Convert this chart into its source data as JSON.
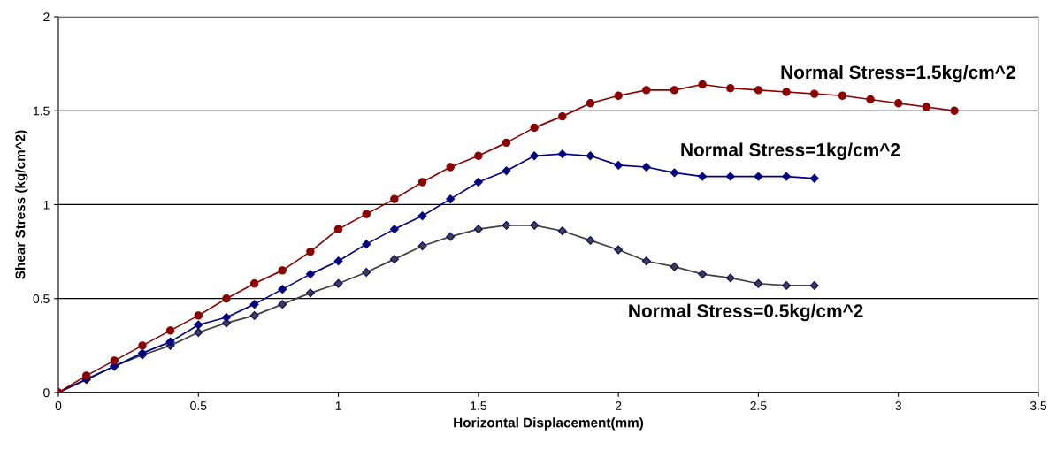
{
  "chart_data": {
    "type": "line",
    "xlabel": "Horizontal Displacement(mm)",
    "ylabel": "Shear Stress (kg/cm^2)",
    "xlim": [
      0,
      3.5
    ],
    "xticks": [
      0,
      0.5,
      1,
      1.5,
      2,
      2.5,
      3,
      3.5
    ],
    "ylim": [
      0,
      2
    ],
    "yticks": [
      0,
      0.5,
      1,
      1.5,
      2
    ],
    "grid": "y",
    "legend": false,
    "x": [
      0,
      0.1,
      0.2,
      0.3,
      0.4,
      0.5,
      0.6,
      0.7,
      0.8,
      0.9,
      1.0,
      1.1,
      1.2,
      1.3,
      1.4,
      1.5,
      1.6,
      1.7,
      1.8,
      1.9,
      2.0,
      2.1,
      2.2,
      2.3,
      2.4,
      2.5,
      2.6,
      2.7,
      2.8,
      2.9,
      3.0,
      3.1,
      3.2
    ],
    "series": [
      {
        "name": "Normal Stress=1.5kg/cm^2",
        "color": "#8b0000",
        "marker": "circle",
        "values": [
          0,
          0.09,
          0.17,
          0.25,
          0.33,
          0.41,
          0.5,
          0.58,
          0.65,
          0.75,
          0.87,
          0.95,
          1.03,
          1.12,
          1.2,
          1.26,
          1.33,
          1.41,
          1.47,
          1.54,
          1.58,
          1.61,
          1.61,
          1.64,
          1.62,
          1.61,
          1.6,
          1.59,
          1.58,
          1.56,
          1.54,
          1.52,
          1.5
        ]
      },
      {
        "name": "Normal Stress=1kg/cm^2",
        "color": "#000080",
        "marker": "diamond",
        "x": [
          0,
          0.1,
          0.2,
          0.3,
          0.4,
          0.5,
          0.6,
          0.7,
          0.8,
          0.9,
          1.0,
          1.1,
          1.2,
          1.3,
          1.4,
          1.5,
          1.6,
          1.7,
          1.8,
          1.9,
          2.0,
          2.1,
          2.2,
          2.3,
          2.4,
          2.5,
          2.6,
          2.7
        ],
        "values": [
          0,
          0.07,
          0.14,
          0.21,
          0.27,
          0.36,
          0.4,
          0.47,
          0.55,
          0.63,
          0.7,
          0.79,
          0.87,
          0.94,
          1.03,
          1.12,
          1.18,
          1.26,
          1.27,
          1.26,
          1.21,
          1.2,
          1.17,
          1.15,
          1.15,
          1.15,
          1.15,
          1.14
        ]
      },
      {
        "name": "Normal Stress=0.5kg/cm^2",
        "color": "#404040",
        "marker": "diamond",
        "x": [
          0,
          0.1,
          0.2,
          0.3,
          0.4,
          0.5,
          0.6,
          0.7,
          0.8,
          0.9,
          1.0,
          1.1,
          1.2,
          1.3,
          1.4,
          1.5,
          1.6,
          1.7,
          1.8,
          1.9,
          2.0,
          2.1,
          2.2,
          2.3,
          2.4,
          2.5,
          2.6,
          2.7
        ],
        "values": [
          0,
          0.07,
          0.14,
          0.2,
          0.25,
          0.32,
          0.37,
          0.41,
          0.47,
          0.53,
          0.58,
          0.64,
          0.71,
          0.78,
          0.83,
          0.87,
          0.89,
          0.89,
          0.86,
          0.81,
          0.76,
          0.7,
          0.67,
          0.63,
          0.61,
          0.58,
          0.57,
          0.57
        ]
      }
    ]
  }
}
